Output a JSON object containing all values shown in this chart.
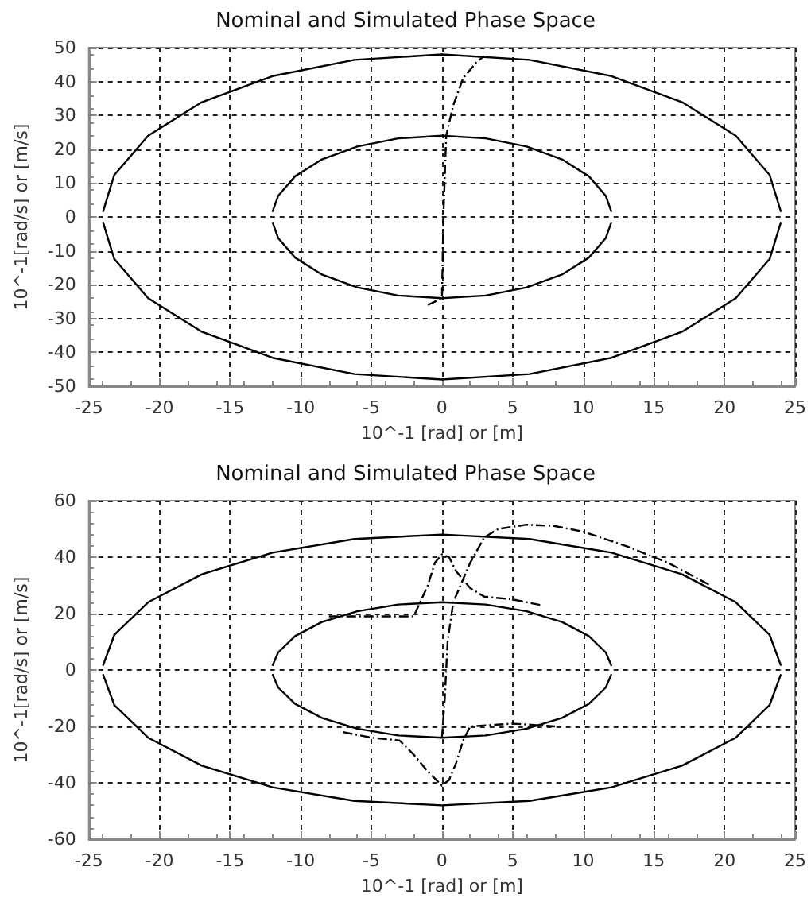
{
  "chart_data": [
    {
      "type": "line",
      "title": "Nominal and Simulated Phase Space",
      "xlabel": "10^-1 [rad] or [m]",
      "ylabel": "10^-1[rad/s] or [m/s]",
      "xlim": [
        -25,
        25
      ],
      "xticks": [
        -25,
        -20,
        -15,
        -10,
        -5,
        0,
        5,
        10,
        15,
        20,
        25
      ],
      "ylim": [
        -50,
        50
      ],
      "yticks": [
        -50,
        -40,
        -30,
        -20,
        -10,
        0,
        10,
        20,
        30,
        40,
        50
      ],
      "grid": true,
      "marker": "none",
      "series": [
        {
          "color": "#000000",
          "line_style": "solid",
          "x": [
            -24,
            -23.2,
            -20.8,
            -17,
            -12,
            -6.2,
            0,
            6.2,
            12,
            17,
            20.8,
            23.2,
            24
          ],
          "values": [
            1.5,
            12.4,
            24,
            33.9,
            41.6,
            46.4,
            48,
            46.4,
            41.6,
            33.9,
            24,
            12.4,
            1.5
          ]
        },
        {
          "color": "#000000",
          "line_style": "solid",
          "x": [
            -24,
            -23.2,
            -20.8,
            -17,
            -12,
            -6.2,
            0,
            6.2,
            12,
            17,
            20.8,
            23.2,
            24
          ],
          "values": [
            -1.5,
            -12.4,
            -24,
            -33.9,
            -41.6,
            -46.4,
            -48,
            -46.4,
            -41.6,
            -33.9,
            -24,
            -12.4,
            -1.5
          ]
        },
        {
          "color": "#000000",
          "line_style": "solid",
          "x": [
            -12,
            -11.6,
            -10.4,
            -8.5,
            -6,
            -3.1,
            0,
            3.1,
            6,
            8.5,
            10.4,
            11.6,
            12
          ],
          "values": [
            1.5,
            6.2,
            12,
            17,
            20.8,
            23.2,
            24,
            23.2,
            20.8,
            17,
            12,
            6.2,
            1.5
          ]
        },
        {
          "color": "#000000",
          "line_style": "solid",
          "x": [
            -12,
            -11.6,
            -10.4,
            -8.5,
            -6,
            -3.1,
            0,
            3.1,
            6,
            8.5,
            10.4,
            11.6,
            12
          ],
          "values": [
            -1.5,
            -6.2,
            -12,
            -17,
            -20.8,
            -23.2,
            -24,
            -23.2,
            -20.8,
            -17,
            -12,
            -6.2,
            -1.5
          ]
        },
        {
          "color": "#000000",
          "line_style": "dashed",
          "x": [
            -1,
            0,
            0.1,
            0.3,
            0.8,
            1.5,
            2.5,
            3
          ],
          "values": [
            -26,
            -24,
            0,
            24,
            33,
            41,
            46,
            47.5
          ]
        }
      ]
    },
    {
      "type": "line",
      "title": "Nominal and Simulated Phase Space",
      "xlabel": "10^-1 [rad] or [m]",
      "ylabel": "10^-1[rad/s] or [m/s]",
      "xlim": [
        -25,
        25
      ],
      "xticks": [
        -25,
        -20,
        -15,
        -10,
        -5,
        0,
        5,
        10,
        15,
        20,
        25
      ],
      "ylim": [
        -60,
        60
      ],
      "yticks": [
        -60,
        -40,
        -20,
        0,
        20,
        40,
        60
      ],
      "grid": true,
      "marker": "none",
      "series": [
        {
          "color": "#000000",
          "line_style": "solid",
          "x": [
            -24,
            -23.2,
            -20.8,
            -17,
            -12,
            -6.2,
            0,
            6.2,
            12,
            17,
            20.8,
            23.2,
            24
          ],
          "values": [
            1.5,
            12.4,
            24,
            33.9,
            41.6,
            46.4,
            48,
            46.4,
            41.6,
            33.9,
            24,
            12.4,
            1.5
          ]
        },
        {
          "color": "#000000",
          "line_style": "solid",
          "x": [
            -24,
            -23.2,
            -20.8,
            -17,
            -12,
            -6.2,
            0,
            6.2,
            12,
            17,
            20.8,
            23.2,
            24
          ],
          "values": [
            -1.5,
            -12.4,
            -24,
            -33.9,
            -41.6,
            -46.4,
            -48,
            -46.4,
            -41.6,
            -33.9,
            -24,
            -12.4,
            -1.5
          ]
        },
        {
          "color": "#000000",
          "line_style": "solid",
          "x": [
            -12,
            -11.6,
            -10.4,
            -8.5,
            -6,
            -3.1,
            0,
            3.1,
            6,
            8.5,
            10.4,
            11.6,
            12
          ],
          "values": [
            1.5,
            6.2,
            12,
            17,
            20.8,
            23.2,
            24,
            23.2,
            20.8,
            17,
            12,
            6.2,
            1.5
          ]
        },
        {
          "color": "#000000",
          "line_style": "solid",
          "x": [
            -12,
            -11.6,
            -10.4,
            -8.5,
            -6,
            -3.1,
            0,
            3.1,
            6,
            8.5,
            10.4,
            11.6,
            12
          ],
          "values": [
            -1.5,
            -6.2,
            -12,
            -17,
            -20.8,
            -23.2,
            -24,
            -23.2,
            -20.8,
            -17,
            -12,
            -6.2,
            -1.5
          ]
        },
        {
          "color": "#000000",
          "line_style": "dashed",
          "x": [
            -8,
            -5,
            -2,
            -1,
            -0.5,
            0,
            0.5,
            1,
            2,
            3,
            5,
            7
          ],
          "values": [
            19,
            19,
            19,
            30,
            38,
            41,
            40,
            35,
            29,
            26,
            25,
            23
          ]
        },
        {
          "color": "#000000",
          "line_style": "dashed",
          "x": [
            -7,
            -5,
            -3,
            -2,
            -1,
            0,
            0.5,
            1,
            1.5,
            2,
            5,
            8
          ],
          "values": [
            -22,
            -24,
            -25,
            -30,
            -36,
            -41,
            -39,
            -33,
            -25,
            -20,
            -19,
            -20
          ]
        },
        {
          "color": "#000000",
          "line_style": "dashed",
          "x": [
            0,
            0.2,
            0.4,
            0.8,
            2,
            3,
            4,
            6,
            8,
            10,
            13,
            16,
            19
          ],
          "values": [
            -24,
            -10,
            10,
            24,
            38,
            47,
            50,
            51.5,
            51,
            49,
            44,
            38,
            30
          ]
        }
      ]
    }
  ]
}
